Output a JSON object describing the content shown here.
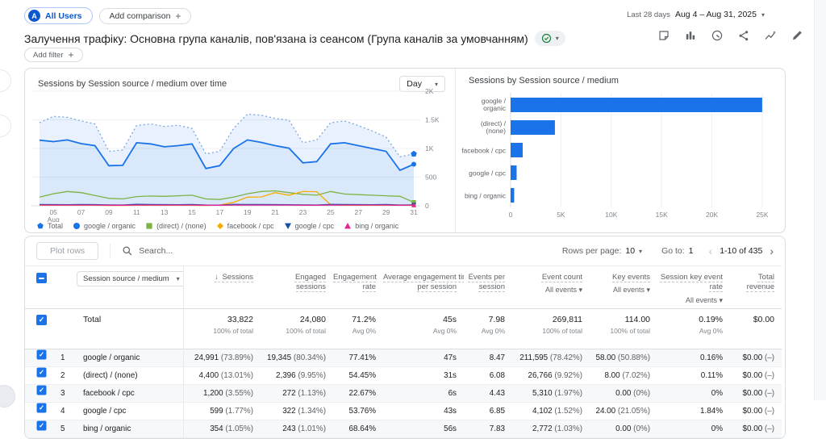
{
  "topbar": {
    "all_users_label": "All Users",
    "all_users_avatar": "A",
    "add_comparison_label": "Add comparison",
    "date_range_label": "Last 28 days",
    "date_range_value": "Aug 4 – Aug 31, 2025"
  },
  "header": {
    "title": "Залучення трафіку: Основна група каналів, пов'язана із сеансом (Група каналів за умовчанням)",
    "add_filter_label": "Add filter",
    "icons": [
      "note-icon",
      "bar-columns-icon",
      "data-quality-icon",
      "share-icon",
      "insights-icon",
      "edit-icon"
    ],
    "accent_color": "#1a73e8",
    "check_color": "#188038"
  },
  "chart_data": [
    {
      "type": "line",
      "title": "Sessions by Session source / medium over time",
      "interval": "Day",
      "ylim": [
        0,
        2000
      ],
      "yticks": [
        {
          "v": 0,
          "label": "0"
        },
        {
          "v": 500,
          "label": "500"
        },
        {
          "v": 1000,
          "label": "1K"
        },
        {
          "v": 1500,
          "label": "1.5K"
        },
        {
          "v": 2000,
          "label": "2K"
        }
      ],
      "x_days": [
        4,
        5,
        6,
        7,
        8,
        9,
        10,
        11,
        12,
        13,
        14,
        15,
        16,
        17,
        18,
        19,
        20,
        21,
        22,
        23,
        24,
        25,
        26,
        27,
        28,
        29,
        30,
        31
      ],
      "xticks": [
        {
          "i": 1,
          "label": "05",
          "sub": "Aug"
        },
        {
          "i": 3,
          "label": "07"
        },
        {
          "i": 5,
          "label": "09"
        },
        {
          "i": 7,
          "label": "11"
        },
        {
          "i": 9,
          "label": "13"
        },
        {
          "i": 11,
          "label": "15"
        },
        {
          "i": 13,
          "label": "17"
        },
        {
          "i": 15,
          "label": "19"
        },
        {
          "i": 17,
          "label": "21"
        },
        {
          "i": 19,
          "label": "23"
        },
        {
          "i": 21,
          "label": "25"
        },
        {
          "i": 23,
          "label": "27"
        },
        {
          "i": 25,
          "label": "29"
        },
        {
          "i": 27,
          "label": "31"
        }
      ],
      "series": [
        {
          "name": "Total",
          "color": "#7ba7dc",
          "marker_color": "#1a73e8",
          "dash": "2 3",
          "width": 1.3,
          "marker": "pentagon",
          "fill": "rgba(26,115,232,0.10)",
          "values": [
            1450,
            1560,
            1545,
            1480,
            1430,
            950,
            975,
            1400,
            1430,
            1385,
            1405,
            1350,
            905,
            950,
            1350,
            1600,
            1580,
            1525,
            1495,
            1100,
            1150,
            1450,
            1480,
            1400,
            1305,
            1200,
            855,
            905
          ]
        },
        {
          "name": "google / organic",
          "color": "#1a73e8",
          "width": 1.8,
          "marker": "circle",
          "fill": "rgba(26,115,232,0.07)",
          "values": [
            1145,
            1120,
            1150,
            1085,
            1050,
            700,
            705,
            1100,
            1080,
            1030,
            1050,
            1080,
            650,
            700,
            1000,
            1150,
            1105,
            1050,
            1005,
            750,
            770,
            1080,
            1100,
            1050,
            1000,
            950,
            620,
            725
          ]
        },
        {
          "name": "(direct) / (none)",
          "color": "#7cb342",
          "width": 1.3,
          "marker": "square",
          "values": [
            150,
            210,
            250,
            230,
            180,
            130,
            120,
            160,
            170,
            165,
            175,
            185,
            120,
            110,
            150,
            210,
            250,
            260,
            230,
            200,
            185,
            250,
            205,
            195,
            185,
            175,
            165,
            60
          ]
        },
        {
          "name": "facebook / cpc",
          "color": "#f9ab00",
          "width": 1.3,
          "marker": "diamond",
          "values": [
            8,
            8,
            8,
            8,
            8,
            6,
            6,
            10,
            10,
            8,
            8,
            8,
            6,
            12,
            60,
            150,
            155,
            230,
            185,
            250,
            245,
            15,
            8,
            8,
            8,
            8,
            8,
            10
          ]
        },
        {
          "name": "google / cpc",
          "color": "#174ea6",
          "width": 1.3,
          "marker": "triangle-down",
          "values": [
            22,
            21,
            20,
            22,
            21,
            15,
            14,
            25,
            22,
            21,
            20,
            22,
            14,
            13,
            24,
            23,
            22,
            21,
            20,
            15,
            14,
            24,
            22,
            21,
            20,
            22,
            14,
            15
          ]
        },
        {
          "name": "bing / organic",
          "color": "#e52592",
          "width": 1.3,
          "marker": "triangle-up",
          "values": [
            13,
            12,
            13,
            12,
            13,
            10,
            10,
            13,
            12,
            13,
            12,
            13,
            10,
            10,
            13,
            12,
            13,
            12,
            13,
            10,
            10,
            13,
            12,
            13,
            12,
            13,
            10,
            11
          ]
        }
      ]
    },
    {
      "type": "bar",
      "title": "Sessions by Session source / medium",
      "bar_color": "#1a73e8",
      "xlim": [
        0,
        26000
      ],
      "xticks": [
        {
          "v": 0,
          "label": "0"
        },
        {
          "v": 5000,
          "label": "5K"
        },
        {
          "v": 10000,
          "label": "10K"
        },
        {
          "v": 15000,
          "label": "15K"
        },
        {
          "v": 20000,
          "label": "20K"
        },
        {
          "v": 25000,
          "label": "25K"
        }
      ],
      "categories": [
        "google / organic",
        "(direct) / (none)",
        "facebook / cpc",
        "google / cpc",
        "bing / organic"
      ],
      "label_lines": [
        [
          "google /",
          "organic"
        ],
        [
          "(direct) /",
          "(none)"
        ],
        [
          "facebook / cpc"
        ],
        [
          "google / cpc"
        ],
        [
          "bing / organic"
        ]
      ],
      "values": [
        24991,
        4400,
        1200,
        599,
        354
      ]
    }
  ],
  "table": {
    "toolbar": {
      "plot_rows_label": "Plot rows",
      "search_placeholder": "Search...",
      "rows_per_page_label": "Rows per page:",
      "rows_per_page_value": "10",
      "goto_label": "Go to:",
      "goto_value": "1",
      "pagination": "1-10 of 435"
    },
    "dimension_header": "Session source / medium",
    "columns": [
      {
        "lines": [
          "Sessions"
        ],
        "sorted": true
      },
      {
        "lines": [
          "Engaged",
          "sessions"
        ]
      },
      {
        "lines": [
          "Engagement",
          "rate"
        ]
      },
      {
        "lines": [
          "Average engagement time",
          "per session"
        ]
      },
      {
        "lines": [
          "Events per",
          "session"
        ]
      },
      {
        "lines": [
          "Event count"
        ],
        "filter": "All events"
      },
      {
        "lines": [
          "Key events"
        ],
        "filter": "All events"
      },
      {
        "lines": [
          "Session key event",
          "rate"
        ],
        "filter": "All events"
      },
      {
        "lines": [
          "Total",
          "revenue"
        ]
      }
    ],
    "total_row": {
      "label": "Total",
      "cells": [
        [
          "33,822",
          "100% of total"
        ],
        [
          "24,080",
          "100% of total"
        ],
        [
          "71.2%",
          "Avg 0%"
        ],
        [
          "45s",
          "Avg 0%"
        ],
        [
          "7.98",
          "Avg 0%"
        ],
        [
          "269,811",
          "100% of total"
        ],
        [
          "114.00",
          "100% of total"
        ],
        [
          "0.19%",
          "Avg 0%"
        ],
        [
          "$0.00",
          ""
        ]
      ]
    },
    "rows": [
      {
        "index": "1",
        "dimension": "google / organic",
        "cells": [
          [
            "24,991",
            "(73.89%)"
          ],
          [
            "19,345",
            "(80.34%)"
          ],
          [
            "77.41%",
            ""
          ],
          [
            "47s",
            ""
          ],
          [
            "8.47",
            ""
          ],
          [
            "211,595",
            "(78.42%)"
          ],
          [
            "58.00",
            "(50.88%)"
          ],
          [
            "0.16%",
            ""
          ],
          [
            "$0.00",
            "(–)"
          ]
        ]
      },
      {
        "index": "2",
        "dimension": "(direct) / (none)",
        "cells": [
          [
            "4,400",
            "(13.01%)"
          ],
          [
            "2,396",
            "(9.95%)"
          ],
          [
            "54.45%",
            ""
          ],
          [
            "31s",
            ""
          ],
          [
            "6.08",
            ""
          ],
          [
            "26,766",
            "(9.92%)"
          ],
          [
            "8.00",
            "(7.02%)"
          ],
          [
            "0.11%",
            ""
          ],
          [
            "$0.00",
            "(–)"
          ]
        ]
      },
      {
        "index": "3",
        "dimension": "facebook / cpc",
        "cells": [
          [
            "1,200",
            "(3.55%)"
          ],
          [
            "272",
            "(1.13%)"
          ],
          [
            "22.67%",
            ""
          ],
          [
            "6s",
            ""
          ],
          [
            "4.43",
            ""
          ],
          [
            "5,310",
            "(1.97%)"
          ],
          [
            "0.00",
            "(0%)"
          ],
          [
            "0%",
            ""
          ],
          [
            "$0.00",
            "(–)"
          ]
        ]
      },
      {
        "index": "4",
        "dimension": "google / cpc",
        "cells": [
          [
            "599",
            "(1.77%)"
          ],
          [
            "322",
            "(1.34%)"
          ],
          [
            "53.76%",
            ""
          ],
          [
            "43s",
            ""
          ],
          [
            "6.85",
            ""
          ],
          [
            "4,102",
            "(1.52%)"
          ],
          [
            "24.00",
            "(21.05%)"
          ],
          [
            "1.84%",
            ""
          ],
          [
            "$0.00",
            "(–)"
          ]
        ]
      },
      {
        "index": "5",
        "dimension": "bing / organic",
        "cells": [
          [
            "354",
            "(1.05%)"
          ],
          [
            "243",
            "(1.01%)"
          ],
          [
            "68.64%",
            ""
          ],
          [
            "56s",
            ""
          ],
          [
            "7.83",
            ""
          ],
          [
            "2,772",
            "(1.03%)"
          ],
          [
            "0.00",
            "(0%)"
          ],
          [
            "0%",
            ""
          ],
          [
            "$0.00",
            "(–)"
          ]
        ]
      }
    ]
  }
}
